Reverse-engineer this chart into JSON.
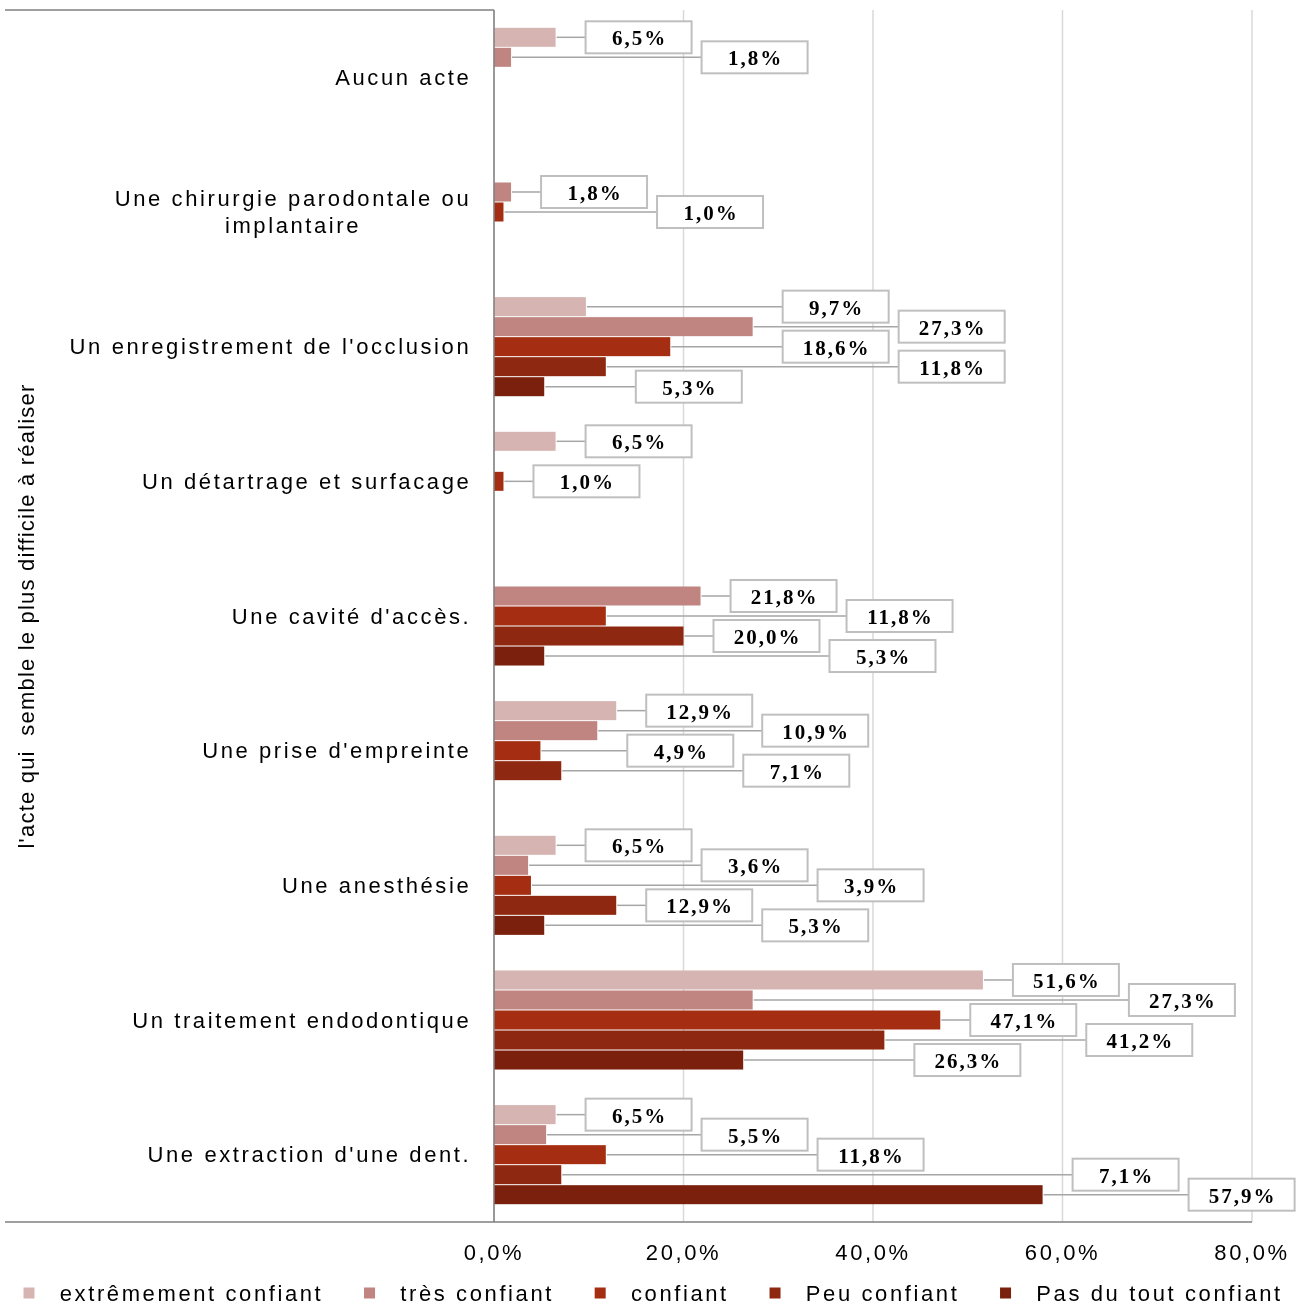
{
  "chart_data": {
    "type": "bar",
    "orientation": "horizontal",
    "ylabel": "l'acte qui  semble le plus difficile à réaliser",
    "categories": [
      "Aucun acte",
      "Une chirurgie parodontale ou implantaire",
      "Un enregistrement de l'occlusion",
      "Un détartrage et surfacage",
      "Une cavité d'accès.",
      "Une prise d'empreinte",
      "Une anesthésie",
      "Un traitement endodontique",
      "Une extraction d'une dent."
    ],
    "series": [
      {
        "name": "extrêmement confiant",
        "color": "#d6b4b1",
        "values": [
          6.5,
          null,
          9.7,
          6.5,
          null,
          12.9,
          6.5,
          51.6,
          6.5
        ],
        "value_labels": [
          "6,5%",
          null,
          "9,7%",
          "6,5%",
          null,
          "12,9%",
          "6,5%",
          "51,6%",
          "6,5%"
        ]
      },
      {
        "name": "très confiant",
        "color": "#c08580",
        "values": [
          1.8,
          1.8,
          27.3,
          null,
          21.8,
          10.9,
          3.6,
          27.3,
          5.5
        ],
        "value_labels": [
          "1,8%",
          "1,8%",
          "27,3%",
          null,
          "21,8%",
          "10,9%",
          "3,6%",
          "27,3%",
          "5,5%"
        ]
      },
      {
        "name": "confiant",
        "color": "#a52e12",
        "values": [
          null,
          1.0,
          18.6,
          1.0,
          11.8,
          4.9,
          3.9,
          47.1,
          11.8
        ],
        "value_labels": [
          null,
          "1,0%",
          "18,6%",
          "1,0%",
          "11,8%",
          "4,9%",
          "3,9%",
          "47,1%",
          "11,8%"
        ]
      },
      {
        "name": "Peu confiant",
        "color": "#8f2810",
        "values": [
          null,
          null,
          11.8,
          null,
          20.0,
          7.1,
          12.9,
          41.2,
          7.1
        ],
        "value_labels": [
          null,
          null,
          "11,8%",
          null,
          "20,0%",
          "7,1%",
          "12,9%",
          "41,2%",
          "7,1%"
        ]
      },
      {
        "name": "Pas du tout confiant",
        "color": "#7a200c",
        "values": [
          null,
          null,
          5.3,
          null,
          5.3,
          null,
          5.3,
          26.3,
          57.9
        ],
        "value_labels": [
          null,
          null,
          "5,3%",
          null,
          "5,3%",
          null,
          "5,3%",
          "26,3%",
          "57,9%"
        ]
      }
    ],
    "xlim": [
      0,
      80
    ],
    "xticks": [
      {
        "value": 0,
        "label": "0,0%"
      },
      {
        "value": 20,
        "label": "20,0%"
      },
      {
        "value": 40,
        "label": "40,0%"
      },
      {
        "value": 60,
        "label": "60,0%"
      },
      {
        "value": 80,
        "label": "80,0%"
      }
    ],
    "grid": "x",
    "legend": "bottom"
  }
}
